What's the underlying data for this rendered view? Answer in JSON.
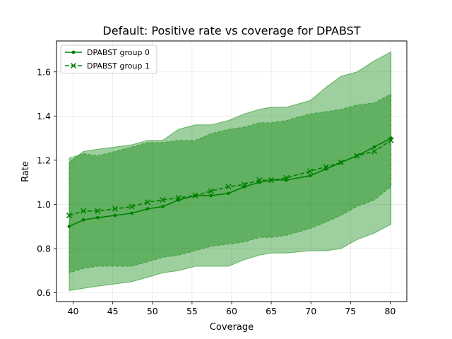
{
  "chart_data": {
    "type": "line",
    "title": "Default: Positive rate vs coverage for DPABST",
    "xlabel": "Coverage",
    "ylabel": "Rate",
    "xlim": [
      37.9,
      82.1
    ],
    "ylim": [
      0.56,
      1.74
    ],
    "xticks": [
      40,
      45,
      50,
      55,
      60,
      65,
      70,
      75,
      80
    ],
    "yticks": [
      0.6,
      0.8,
      1.0,
      1.2,
      1.4,
      1.6
    ],
    "grid": true,
    "legend_position": "top-left",
    "series_color": "#008000",
    "series": [
      {
        "name": "DPABST group 0",
        "marker": "dot",
        "linestyle": "solid",
        "x": [
          39.5,
          41.3,
          43.1,
          45.3,
          47.4,
          49.4,
          51.3,
          53.3,
          55.4,
          57.4,
          59.6,
          61.6,
          63.5,
          65.0,
          66.9,
          69.9,
          71.9,
          73.8,
          75.8,
          78.0,
          80.1
        ],
        "y": [
          0.9,
          0.93,
          0.94,
          0.95,
          0.96,
          0.98,
          0.99,
          1.02,
          1.04,
          1.04,
          1.05,
          1.08,
          1.1,
          1.11,
          1.11,
          1.13,
          1.16,
          1.19,
          1.22,
          1.26,
          1.3
        ],
        "band_upper": [
          1.19,
          1.24,
          1.25,
          1.26,
          1.27,
          1.29,
          1.29,
          1.34,
          1.36,
          1.36,
          1.38,
          1.41,
          1.43,
          1.44,
          1.44,
          1.47,
          1.53,
          1.58,
          1.6,
          1.65,
          1.69
        ],
        "band_lower": [
          0.61,
          0.62,
          0.63,
          0.64,
          0.65,
          0.67,
          0.69,
          0.7,
          0.72,
          0.72,
          0.72,
          0.75,
          0.77,
          0.78,
          0.78,
          0.79,
          0.79,
          0.8,
          0.84,
          0.87,
          0.91
        ]
      },
      {
        "name": "DPABST group 1",
        "marker": "x",
        "linestyle": "dashed",
        "x": [
          39.5,
          41.3,
          43.1,
          45.3,
          47.4,
          49.4,
          51.3,
          53.3,
          55.4,
          57.4,
          59.6,
          61.6,
          63.5,
          65.0,
          66.9,
          69.9,
          71.9,
          73.8,
          75.8,
          78.0,
          80.1
        ],
        "y": [
          0.95,
          0.97,
          0.97,
          0.98,
          0.99,
          1.01,
          1.02,
          1.03,
          1.04,
          1.06,
          1.08,
          1.09,
          1.11,
          1.11,
          1.12,
          1.15,
          1.17,
          1.19,
          1.22,
          1.24,
          1.29
        ],
        "band_upper": [
          1.21,
          1.23,
          1.22,
          1.24,
          1.26,
          1.28,
          1.28,
          1.29,
          1.29,
          1.32,
          1.34,
          1.35,
          1.37,
          1.37,
          1.38,
          1.41,
          1.42,
          1.43,
          1.45,
          1.46,
          1.5
        ],
        "band_lower": [
          0.69,
          0.71,
          0.72,
          0.72,
          0.72,
          0.74,
          0.76,
          0.77,
          0.79,
          0.81,
          0.82,
          0.83,
          0.85,
          0.85,
          0.86,
          0.89,
          0.92,
          0.95,
          0.99,
          1.02,
          1.08
        ]
      }
    ]
  }
}
